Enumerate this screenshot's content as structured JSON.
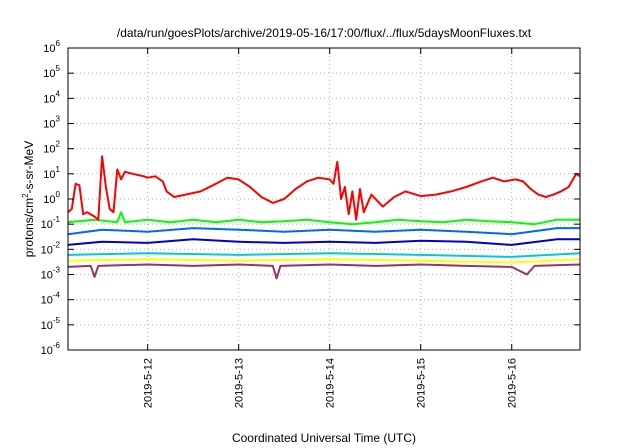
{
  "chart_data": {
    "type": "line",
    "title": "/data/run/goesPlots/archive/2019-05-16/17:00/flux/../flux/5daysMoonFluxes.txt",
    "xlabel": "Coordinated Universal Time (UTC)",
    "ylabel": {
      "prefix": "protons/cm",
      "sup": "2",
      "suffix": "-s-sr-MeV"
    },
    "y_scale": "log",
    "ylim_exponents": [
      -6,
      6
    ],
    "y_ticks": [
      {
        "base": "10",
        "exp": "-6"
      },
      {
        "base": "10",
        "exp": "-5"
      },
      {
        "base": "10",
        "exp": "-4"
      },
      {
        "base": "10",
        "exp": "-3"
      },
      {
        "base": "10",
        "exp": "-2"
      },
      {
        "base": "10",
        "exp": "-1"
      },
      {
        "base": "10",
        "exp": "0"
      },
      {
        "base": "10",
        "exp": "1"
      },
      {
        "base": "10",
        "exp": "2"
      },
      {
        "base": "10",
        "exp": "3"
      },
      {
        "base": "10",
        "exp": "4"
      },
      {
        "base": "10",
        "exp": "5"
      },
      {
        "base": "10",
        "exp": "6"
      }
    ],
    "xlim": [
      "2019-05-11T03:00",
      "2019-05-16T18:00"
    ],
    "x_ticks": [
      {
        "label": "2019-5-12",
        "date": "2019-05-12T00:00"
      },
      {
        "label": "2019-5-13",
        "date": "2019-05-13T00:00"
      },
      {
        "label": "2019-5-14",
        "date": "2019-05-14T00:00"
      },
      {
        "label": "2019-5-15",
        "date": "2019-05-15T00:00"
      },
      {
        "label": "2019-5-16",
        "date": "2019-05-16T00:00"
      }
    ],
    "grid": true,
    "series": [
      {
        "color": "#ff0000",
        "points": [
          [
            "2019-05-11T03:00",
            0.3
          ],
          [
            "2019-05-11T04:00",
            0.4
          ],
          [
            "2019-05-11T05:00",
            4.0
          ],
          [
            "2019-05-11T06:00",
            3.5
          ],
          [
            "2019-05-11T07:00",
            0.25
          ],
          [
            "2019-05-11T08:00",
            0.3
          ],
          [
            "2019-05-11T10:00",
            0.2
          ],
          [
            "2019-05-11T11:00",
            0.15
          ],
          [
            "2019-05-11T12:00",
            50
          ],
          [
            "2019-05-11T13:00",
            3
          ],
          [
            "2019-05-11T14:00",
            0.4
          ],
          [
            "2019-05-11T15:00",
            0.3
          ],
          [
            "2019-05-11T16:00",
            15
          ],
          [
            "2019-05-11T17:00",
            6
          ],
          [
            "2019-05-11T18:00",
            12
          ],
          [
            "2019-05-11T20:00",
            10
          ],
          [
            "2019-05-11T23:00",
            8
          ],
          [
            "2019-05-12T00:00",
            7
          ],
          [
            "2019-05-12T02:00",
            8
          ],
          [
            "2019-05-12T04:00",
            5
          ],
          [
            "2019-05-12T05:00",
            2
          ],
          [
            "2019-05-12T07:00",
            1.2
          ],
          [
            "2019-05-12T10:00",
            1.5
          ],
          [
            "2019-05-12T14:00",
            2
          ],
          [
            "2019-05-12T18:00",
            4
          ],
          [
            "2019-05-12T21:00",
            7
          ],
          [
            "2019-05-13T00:00",
            6
          ],
          [
            "2019-05-13T03:00",
            3
          ],
          [
            "2019-05-13T06:00",
            1.2
          ],
          [
            "2019-05-13T09:00",
            0.7
          ],
          [
            "2019-05-13T12:00",
            1.0
          ],
          [
            "2019-05-13T15:00",
            2.5
          ],
          [
            "2019-05-13T18:00",
            5
          ],
          [
            "2019-05-13T21:00",
            7
          ],
          [
            "2019-05-14T00:00",
            6
          ],
          [
            "2019-05-14T01:00",
            4
          ],
          [
            "2019-05-14T02:00",
            30
          ],
          [
            "2019-05-14T03:00",
            1.0
          ],
          [
            "2019-05-14T04:00",
            3
          ],
          [
            "2019-05-14T05:00",
            0.25
          ],
          [
            "2019-05-14T06:00",
            2
          ],
          [
            "2019-05-14T07:00",
            0.15
          ],
          [
            "2019-05-14T08:00",
            2.5
          ],
          [
            "2019-05-14T09:00",
            0.3
          ],
          [
            "2019-05-14T11:00",
            1.5
          ],
          [
            "2019-05-14T14:00",
            0.5
          ],
          [
            "2019-05-14T17:00",
            1.2
          ],
          [
            "2019-05-14T20:00",
            2
          ],
          [
            "2019-05-15T00:00",
            1.3
          ],
          [
            "2019-05-15T04:00",
            1.5
          ],
          [
            "2019-05-15T08:00",
            2
          ],
          [
            "2019-05-15T12:00",
            3
          ],
          [
            "2019-05-15T16:00",
            5
          ],
          [
            "2019-05-15T19:00",
            7
          ],
          [
            "2019-05-15T22:00",
            5
          ],
          [
            "2019-05-16T01:00",
            6
          ],
          [
            "2019-05-16T03:00",
            5
          ],
          [
            "2019-05-16T05:00",
            2.5
          ],
          [
            "2019-05-16T07:00",
            1.5
          ],
          [
            "2019-05-16T09:00",
            1.2
          ],
          [
            "2019-05-16T11:00",
            1.5
          ],
          [
            "2019-05-16T13:00",
            2
          ],
          [
            "2019-05-16T15:00",
            3
          ],
          [
            "2019-05-16T17:00",
            10
          ],
          [
            "2019-05-16T18:00",
            8
          ]
        ]
      },
      {
        "color": "#00ff00",
        "points": [
          [
            "2019-05-11T03:00",
            0.12
          ],
          [
            "2019-05-11T10:00",
            0.15
          ],
          [
            "2019-05-11T16:00",
            0.12
          ],
          [
            "2019-05-11T17:00",
            0.3
          ],
          [
            "2019-05-11T18:00",
            0.12
          ],
          [
            "2019-05-12T00:00",
            0.15
          ],
          [
            "2019-05-12T06:00",
            0.12
          ],
          [
            "2019-05-12T12:00",
            0.15
          ],
          [
            "2019-05-12T18:00",
            0.12
          ],
          [
            "2019-05-13T00:00",
            0.15
          ],
          [
            "2019-05-13T06:00",
            0.12
          ],
          [
            "2019-05-13T12:00",
            0.13
          ],
          [
            "2019-05-13T18:00",
            0.15
          ],
          [
            "2019-05-14T00:00",
            0.12
          ],
          [
            "2019-05-14T06:00",
            0.1
          ],
          [
            "2019-05-14T12:00",
            0.12
          ],
          [
            "2019-05-14T18:00",
            0.15
          ],
          [
            "2019-05-15T00:00",
            0.13
          ],
          [
            "2019-05-15T06:00",
            0.12
          ],
          [
            "2019-05-15T12:00",
            0.15
          ],
          [
            "2019-05-15T18:00",
            0.13
          ],
          [
            "2019-05-16T00:00",
            0.12
          ],
          [
            "2019-05-16T06:00",
            0.1
          ],
          [
            "2019-05-16T12:00",
            0.15
          ],
          [
            "2019-05-16T18:00",
            0.15
          ]
        ]
      },
      {
        "color": "#0066ff",
        "points": [
          [
            "2019-05-11T03:00",
            0.04
          ],
          [
            "2019-05-11T12:00",
            0.06
          ],
          [
            "2019-05-12T00:00",
            0.05
          ],
          [
            "2019-05-12T12:00",
            0.07
          ],
          [
            "2019-05-13T00:00",
            0.06
          ],
          [
            "2019-05-13T12:00",
            0.05
          ],
          [
            "2019-05-14T00:00",
            0.06
          ],
          [
            "2019-05-14T12:00",
            0.05
          ],
          [
            "2019-05-15T00:00",
            0.06
          ],
          [
            "2019-05-15T12:00",
            0.05
          ],
          [
            "2019-05-16T00:00",
            0.04
          ],
          [
            "2019-05-16T12:00",
            0.07
          ],
          [
            "2019-05-16T18:00",
            0.07
          ]
        ]
      },
      {
        "color": "#0000cc",
        "points": [
          [
            "2019-05-11T03:00",
            0.015
          ],
          [
            "2019-05-11T12:00",
            0.02
          ],
          [
            "2019-05-12T00:00",
            0.018
          ],
          [
            "2019-05-12T12:00",
            0.025
          ],
          [
            "2019-05-13T00:00",
            0.02
          ],
          [
            "2019-05-13T12:00",
            0.018
          ],
          [
            "2019-05-14T00:00",
            0.02
          ],
          [
            "2019-05-14T12:00",
            0.018
          ],
          [
            "2019-05-15T00:00",
            0.022
          ],
          [
            "2019-05-15T12:00",
            0.02
          ],
          [
            "2019-05-16T00:00",
            0.015
          ],
          [
            "2019-05-16T12:00",
            0.025
          ],
          [
            "2019-05-16T18:00",
            0.025
          ]
        ]
      },
      {
        "color": "#00cccc",
        "points": [
          [
            "2019-05-11T03:00",
            0.006
          ],
          [
            "2019-05-12T00:00",
            0.007
          ],
          [
            "2019-05-13T00:00",
            0.006
          ],
          [
            "2019-05-14T00:00",
            0.007
          ],
          [
            "2019-05-15T00:00",
            0.006
          ],
          [
            "2019-05-16T00:00",
            0.005
          ],
          [
            "2019-05-16T18:00",
            0.007
          ]
        ]
      },
      {
        "color": "#ffff00",
        "points": [
          [
            "2019-05-11T03:00",
            0.0035
          ],
          [
            "2019-05-12T00:00",
            0.004
          ],
          [
            "2019-05-13T00:00",
            0.0035
          ],
          [
            "2019-05-14T00:00",
            0.004
          ],
          [
            "2019-05-15T00:00",
            0.0035
          ],
          [
            "2019-05-16T00:00",
            0.003
          ],
          [
            "2019-05-16T18:00",
            0.004
          ]
        ]
      },
      {
        "color": "#993366",
        "points": [
          [
            "2019-05-11T03:00",
            0.002
          ],
          [
            "2019-05-11T09:00",
            0.0022
          ],
          [
            "2019-05-11T10:00",
            0.0008
          ],
          [
            "2019-05-11T11:00",
            0.0022
          ],
          [
            "2019-05-12T00:00",
            0.0025
          ],
          [
            "2019-05-12T12:00",
            0.0022
          ],
          [
            "2019-05-13T00:00",
            0.0025
          ],
          [
            "2019-05-13T09:00",
            0.0022
          ],
          [
            "2019-05-13T10:00",
            0.0007
          ],
          [
            "2019-05-13T11:00",
            0.0022
          ],
          [
            "2019-05-14T00:00",
            0.0025
          ],
          [
            "2019-05-14T12:00",
            0.0022
          ],
          [
            "2019-05-15T00:00",
            0.0025
          ],
          [
            "2019-05-15T12:00",
            0.0022
          ],
          [
            "2019-05-16T00:00",
            0.002
          ],
          [
            "2019-05-16T04:00",
            0.001
          ],
          [
            "2019-05-16T06:00",
            0.0022
          ],
          [
            "2019-05-16T18:00",
            0.0025
          ]
        ]
      }
    ]
  }
}
